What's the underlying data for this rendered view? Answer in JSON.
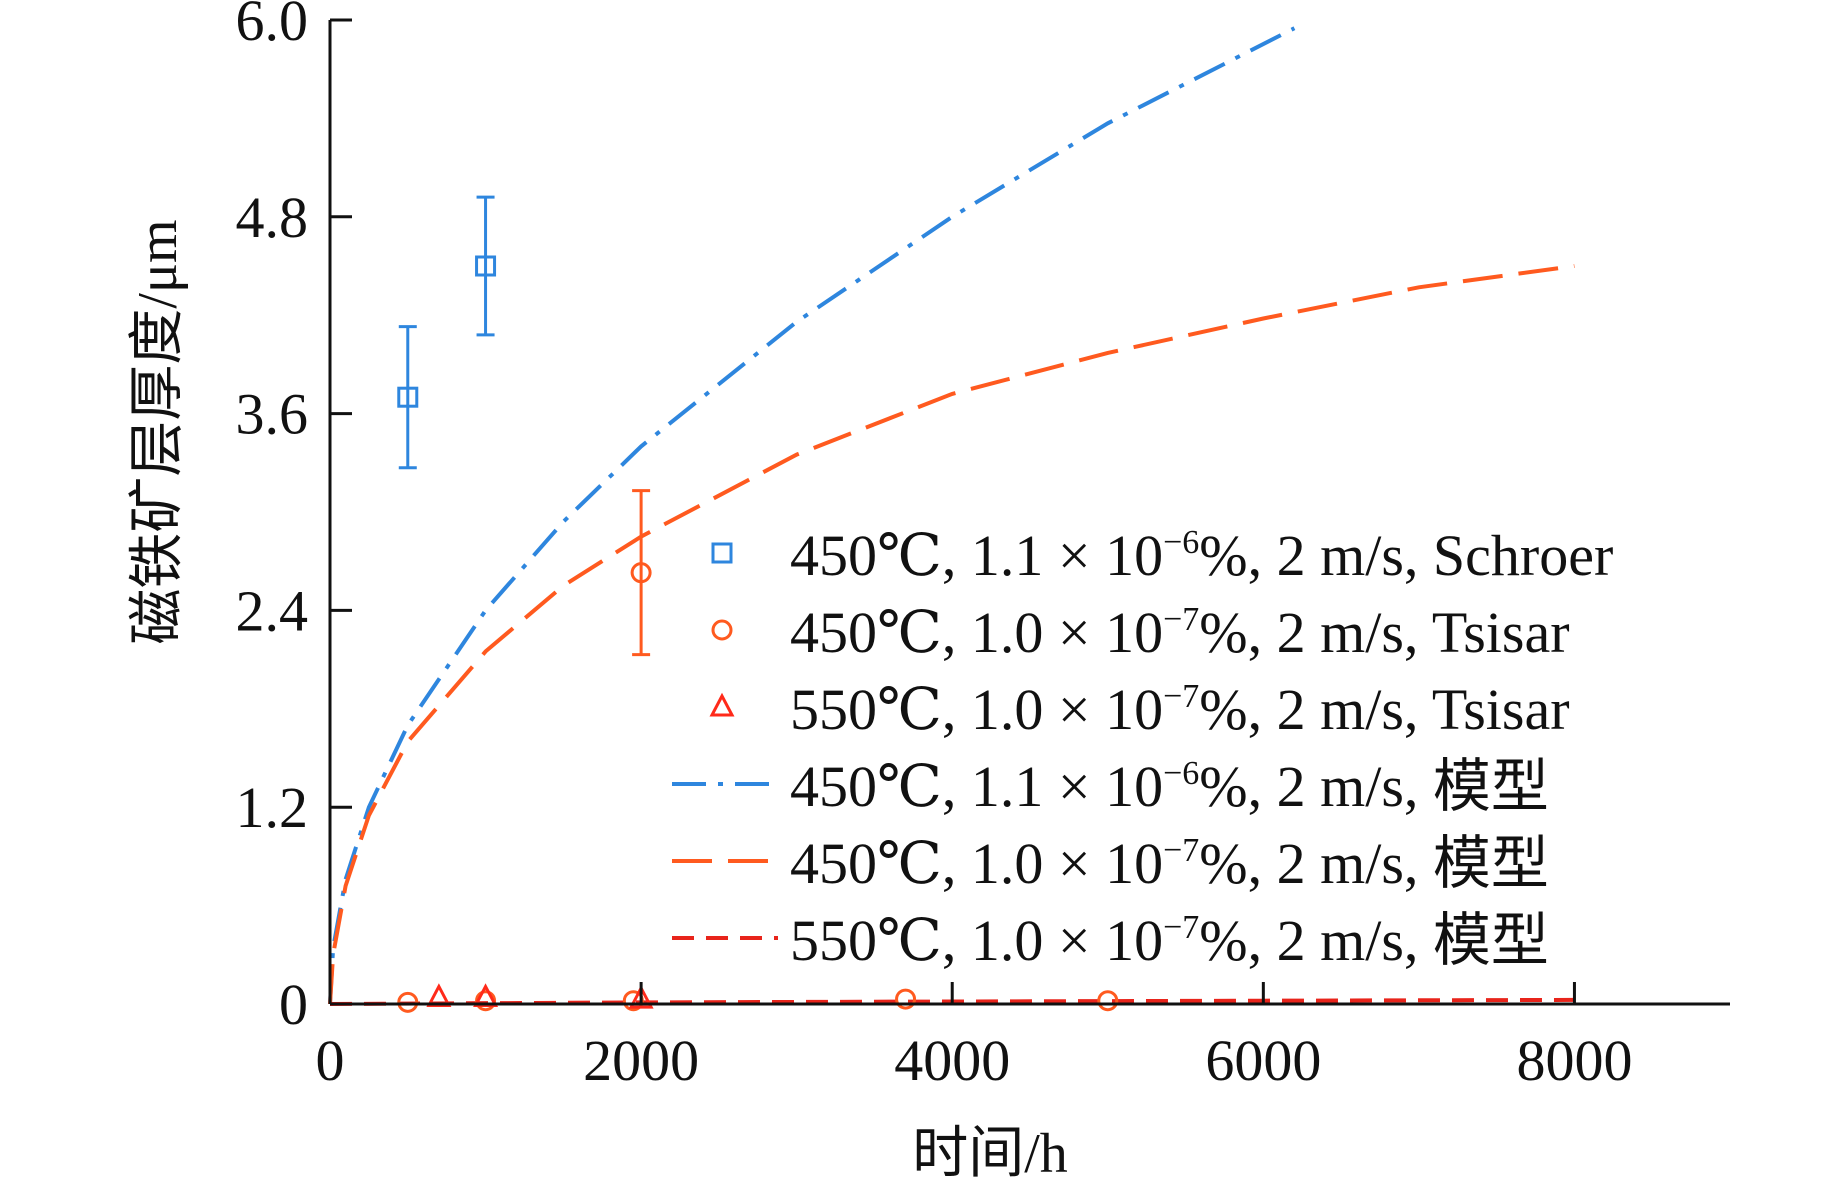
{
  "chart_data": {
    "type": "scatter",
    "title": "",
    "xlabel": "时间/h",
    "ylabel": "磁铁矿层厚度/μm",
    "xlim": [
      0,
      9000
    ],
    "ylim": [
      0,
      6.0
    ],
    "x_ticks": [
      {
        "value": 0,
        "label": "0"
      },
      {
        "value": 2000,
        "label": "2000"
      },
      {
        "value": 4000,
        "label": "4000"
      },
      {
        "value": 6000,
        "label": "6000"
      },
      {
        "value": 8000,
        "label": "8000"
      }
    ],
    "y_ticks": [
      {
        "value": 0,
        "label": "0"
      },
      {
        "value": 1.2,
        "label": "1.2"
      },
      {
        "value": 2.4,
        "label": "2.4"
      },
      {
        "value": 3.6,
        "label": "3.6"
      },
      {
        "value": 4.8,
        "label": "4.8"
      },
      {
        "value": 6.0,
        "label": "6.0"
      }
    ],
    "legend_position": "right",
    "series": [
      {
        "name": "450℃, 1.1 × 10^-6%, 2 m/s, Schroer",
        "label": {
          "temp": "450℃, 1.1 × 10",
          "exp": "−6",
          "rest": "%, 2 m/s, Schroer"
        },
        "kind": "points",
        "marker": "square",
        "color": "#2e86de",
        "points": [
          {
            "x": 500,
            "y": 3.7,
            "err": 0.43
          },
          {
            "x": 1000,
            "y": 4.5,
            "err": 0.42
          }
        ]
      },
      {
        "name": "450℃, 1.0 × 10^-7%, 2 m/s, Tsisar",
        "label": {
          "temp": "450℃, 1.0 × 10",
          "exp": "−7",
          "rest": "%, 2 m/s, Tsisar"
        },
        "kind": "points",
        "marker": "circle",
        "color": "#ff5a1f",
        "points": [
          {
            "x": 500,
            "y": 0.01
          },
          {
            "x": 1000,
            "y": 0.02
          },
          {
            "x": 2000,
            "y": 2.63,
            "err": 0.5
          },
          {
            "x": 1950,
            "y": 0.02
          },
          {
            "x": 3700,
            "y": 0.03
          },
          {
            "x": 5000,
            "y": 0.02
          }
        ]
      },
      {
        "name": "550℃, 1.0 × 10^-7%, 2 m/s, Tsisar",
        "label": {
          "temp": "550℃, 1.0 × 10",
          "exp": "−7",
          "rest": "%, 2 m/s, Tsisar"
        },
        "kind": "points",
        "marker": "triangle",
        "color": "#ff2a1a",
        "points": [
          {
            "x": 700,
            "y": 0.04
          },
          {
            "x": 1000,
            "y": 0.04
          },
          {
            "x": 2000,
            "y": 0.03
          }
        ]
      },
      {
        "name": "450℃, 1.1 × 10^-6%, 2 m/s, 模型",
        "label": {
          "temp": "450℃, 1.1 × 10",
          "exp": "−6",
          "rest": "%, 2 m/s, 模型"
        },
        "kind": "line",
        "dash": "dashdot",
        "color": "#2e86de",
        "points": [
          {
            "x": 0,
            "y": 0
          },
          {
            "x": 20,
            "y": 0.34
          },
          {
            "x": 100,
            "y": 0.76
          },
          {
            "x": 250,
            "y": 1.2
          },
          {
            "x": 500,
            "y": 1.7
          },
          {
            "x": 1000,
            "y": 2.4
          },
          {
            "x": 1500,
            "y": 2.94
          },
          {
            "x": 2000,
            "y": 3.4
          },
          {
            "x": 3000,
            "y": 4.16
          },
          {
            "x": 4000,
            "y": 4.8
          },
          {
            "x": 5000,
            "y": 5.37
          },
          {
            "x": 6200,
            "y": 5.95
          }
        ]
      },
      {
        "name": "450℃, 1.0 × 10^-7%, 2 m/s, 模型",
        "label": {
          "temp": "450℃, 1.0 × 10",
          "exp": "−7",
          "rest": "%, 2 m/s, 模型"
        },
        "kind": "line",
        "dash": "longdash",
        "color": "#ff5a1f",
        "points": [
          {
            "x": 0,
            "y": 0
          },
          {
            "x": 20,
            "y": 0.3
          },
          {
            "x": 100,
            "y": 0.72
          },
          {
            "x": 250,
            "y": 1.15
          },
          {
            "x": 500,
            "y": 1.6
          },
          {
            "x": 1000,
            "y": 2.15
          },
          {
            "x": 1500,
            "y": 2.55
          },
          {
            "x": 2000,
            "y": 2.85
          },
          {
            "x": 3000,
            "y": 3.35
          },
          {
            "x": 4000,
            "y": 3.72
          },
          {
            "x": 5000,
            "y": 3.97
          },
          {
            "x": 6000,
            "y": 4.18
          },
          {
            "x": 7000,
            "y": 4.37
          },
          {
            "x": 8000,
            "y": 4.5
          }
        ]
      },
      {
        "name": "550℃, 1.0 × 10^-7%, 2 m/s, 模型",
        "label": {
          "temp": "550℃, 1.0 × 10",
          "exp": "−7",
          "rest": "%, 2 m/s, 模型"
        },
        "kind": "line",
        "dash": "dashed",
        "color": "#e8241b",
        "points": [
          {
            "x": 0,
            "y": 0.0
          },
          {
            "x": 2000,
            "y": 0.01
          },
          {
            "x": 4000,
            "y": 0.015
          },
          {
            "x": 6000,
            "y": 0.02
          },
          {
            "x": 8000,
            "y": 0.025
          }
        ]
      }
    ]
  }
}
